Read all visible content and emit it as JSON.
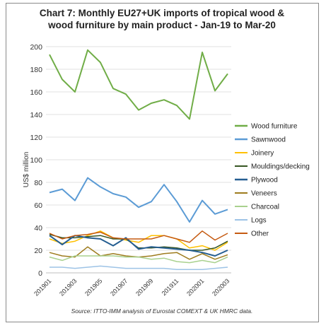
{
  "chart_data": {
    "type": "line",
    "title_line1": "Chart 7: Monthly EU27+UK imports of tropical wood &",
    "title_line2": "wood furniture by main product - Jan-19 to Mar-20",
    "ylabel": "US$ million",
    "source": "Source: ITTO-IMM analysis of Eurostat COMEXT & UK HMRC data.",
    "ylim": [
      0,
      200
    ],
    "yticks": [
      0,
      20,
      40,
      60,
      80,
      100,
      120,
      140,
      160,
      180,
      200
    ],
    "x": [
      "201901",
      "201902",
      "201903",
      "201904",
      "201905",
      "201906",
      "201907",
      "201908",
      "201909",
      "201910",
      "201911",
      "201912",
      "202001",
      "202002",
      "202003"
    ],
    "xtick_labels": [
      "201901",
      "201903",
      "201905",
      "201907",
      "201909",
      "201911",
      "202001",
      "202003"
    ],
    "grid": true,
    "legend_position": "right",
    "series": [
      {
        "name": "Wood furniture",
        "color": "#70ad47",
        "width": 2,
        "values": [
          193,
          171,
          160,
          197,
          186,
          163,
          158,
          144,
          150,
          153,
          148,
          136,
          195,
          161,
          176
        ]
      },
      {
        "name": "Sawnwood",
        "color": "#5b9bd5",
        "width": 2,
        "values": [
          71,
          74,
          64,
          84,
          76,
          70,
          67,
          58,
          63,
          78,
          63,
          45,
          64,
          52,
          56
        ]
      },
      {
        "name": "Joinery",
        "color": "#ffc000",
        "width": 1.5,
        "values": [
          30,
          26,
          28,
          33,
          37,
          31,
          29,
          27,
          33,
          33,
          30,
          22,
          24,
          20,
          27
        ]
      },
      {
        "name": "Mouldings/decking",
        "color": "#375623",
        "width": 1.5,
        "values": [
          34,
          31,
          31,
          32,
          33,
          30,
          30,
          22,
          22,
          23,
          22,
          20,
          20,
          22,
          28
        ]
      },
      {
        "name": "Plywood",
        "color": "#255e91",
        "width": 2,
        "values": [
          33,
          25,
          33,
          31,
          30,
          24,
          31,
          21,
          23,
          22,
          21,
          20,
          18,
          15,
          20
        ]
      },
      {
        "name": "Veneers",
        "color": "#9e7c1e",
        "width": 1.5,
        "values": [
          18,
          15,
          14,
          23,
          15,
          17,
          15,
          14,
          15,
          17,
          18,
          12,
          17,
          12,
          16
        ]
      },
      {
        "name": "Charcoal",
        "color": "#a9d18e",
        "width": 1.5,
        "values": [
          14,
          11,
          15,
          15,
          15,
          15,
          14,
          14,
          12,
          13,
          10,
          9,
          11,
          9,
          14
        ]
      },
      {
        "name": "Logs",
        "color": "#9dc3e6",
        "width": 1.5,
        "values": [
          5,
          5,
          4,
          5,
          6,
          5,
          4,
          4,
          4,
          4,
          3,
          3,
          3,
          4,
          5
        ]
      },
      {
        "name": "Other",
        "color": "#c55a11",
        "width": 1.5,
        "values": [
          35,
          30,
          33,
          34,
          36,
          31,
          30,
          30,
          30,
          33,
          30,
          27,
          37,
          29,
          35
        ]
      }
    ]
  }
}
